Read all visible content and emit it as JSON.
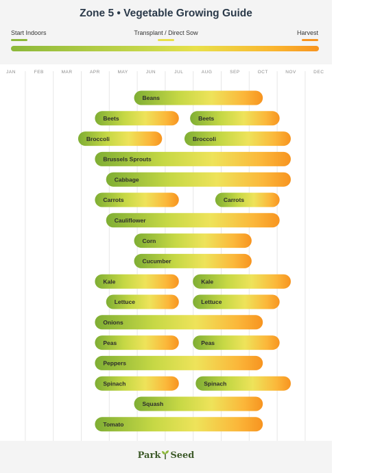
{
  "title": "Zone 5 • Vegetable Growing Guide",
  "legend": {
    "start": "Start Indoors",
    "transplant": "Transplant / Direct Sow",
    "harvest": "Harvest"
  },
  "colors": {
    "start_indoors": "#8cb83a",
    "transplant": "#e8e04a",
    "harvest": "#f79420"
  },
  "footer": {
    "brand_left": "Park",
    "brand_right": "Seed"
  },
  "chart_data": {
    "type": "gantt",
    "title": "Zone 5 • Vegetable Growing Guide",
    "months": [
      "JAN",
      "FEB",
      "MAR",
      "APR",
      "MAY",
      "JUN",
      "JUL",
      "AUG",
      "SEP",
      "OCT",
      "NOV",
      "DEC"
    ],
    "grid": true,
    "legend_position": "top",
    "crops": [
      {
        "name": "Beans",
        "bars": [
          [
            4.4,
            9.0
          ]
        ]
      },
      {
        "name": "Beets",
        "bars": [
          [
            3.0,
            6.0
          ],
          [
            6.4,
            9.6
          ]
        ]
      },
      {
        "name": "Broccoli",
        "bars": [
          [
            2.4,
            5.4
          ],
          [
            6.2,
            10.0
          ]
        ]
      },
      {
        "name": "Brussels Sprouts",
        "bars": [
          [
            3.0,
            10.0
          ]
        ]
      },
      {
        "name": "Cabbage",
        "bars": [
          [
            3.4,
            10.0
          ]
        ]
      },
      {
        "name": "Carrots",
        "bars": [
          [
            3.0,
            6.0
          ],
          [
            7.3,
            9.6
          ]
        ]
      },
      {
        "name": "Cauliflower",
        "bars": [
          [
            3.4,
            9.6
          ]
        ]
      },
      {
        "name": "Corn",
        "bars": [
          [
            4.4,
            8.6
          ]
        ]
      },
      {
        "name": "Cucumber",
        "bars": [
          [
            4.4,
            8.6
          ]
        ]
      },
      {
        "name": "Kale",
        "bars": [
          [
            3.0,
            6.0
          ],
          [
            6.5,
            10.0
          ]
        ]
      },
      {
        "name": "Lettuce",
        "bars": [
          [
            3.4,
            6.0
          ],
          [
            6.5,
            9.6
          ]
        ]
      },
      {
        "name": "Onions",
        "bars": [
          [
            3.0,
            9.0
          ]
        ]
      },
      {
        "name": "Peas",
        "bars": [
          [
            3.0,
            6.0
          ],
          [
            6.5,
            9.6
          ]
        ]
      },
      {
        "name": "Peppers",
        "bars": [
          [
            3.0,
            9.0
          ]
        ]
      },
      {
        "name": "Spinach",
        "bars": [
          [
            3.0,
            6.0
          ],
          [
            6.6,
            10.0
          ]
        ]
      },
      {
        "name": "Squash",
        "bars": [
          [
            4.4,
            9.0
          ]
        ]
      },
      {
        "name": "Tomato",
        "bars": [
          [
            3.0,
            9.0
          ]
        ]
      }
    ]
  }
}
